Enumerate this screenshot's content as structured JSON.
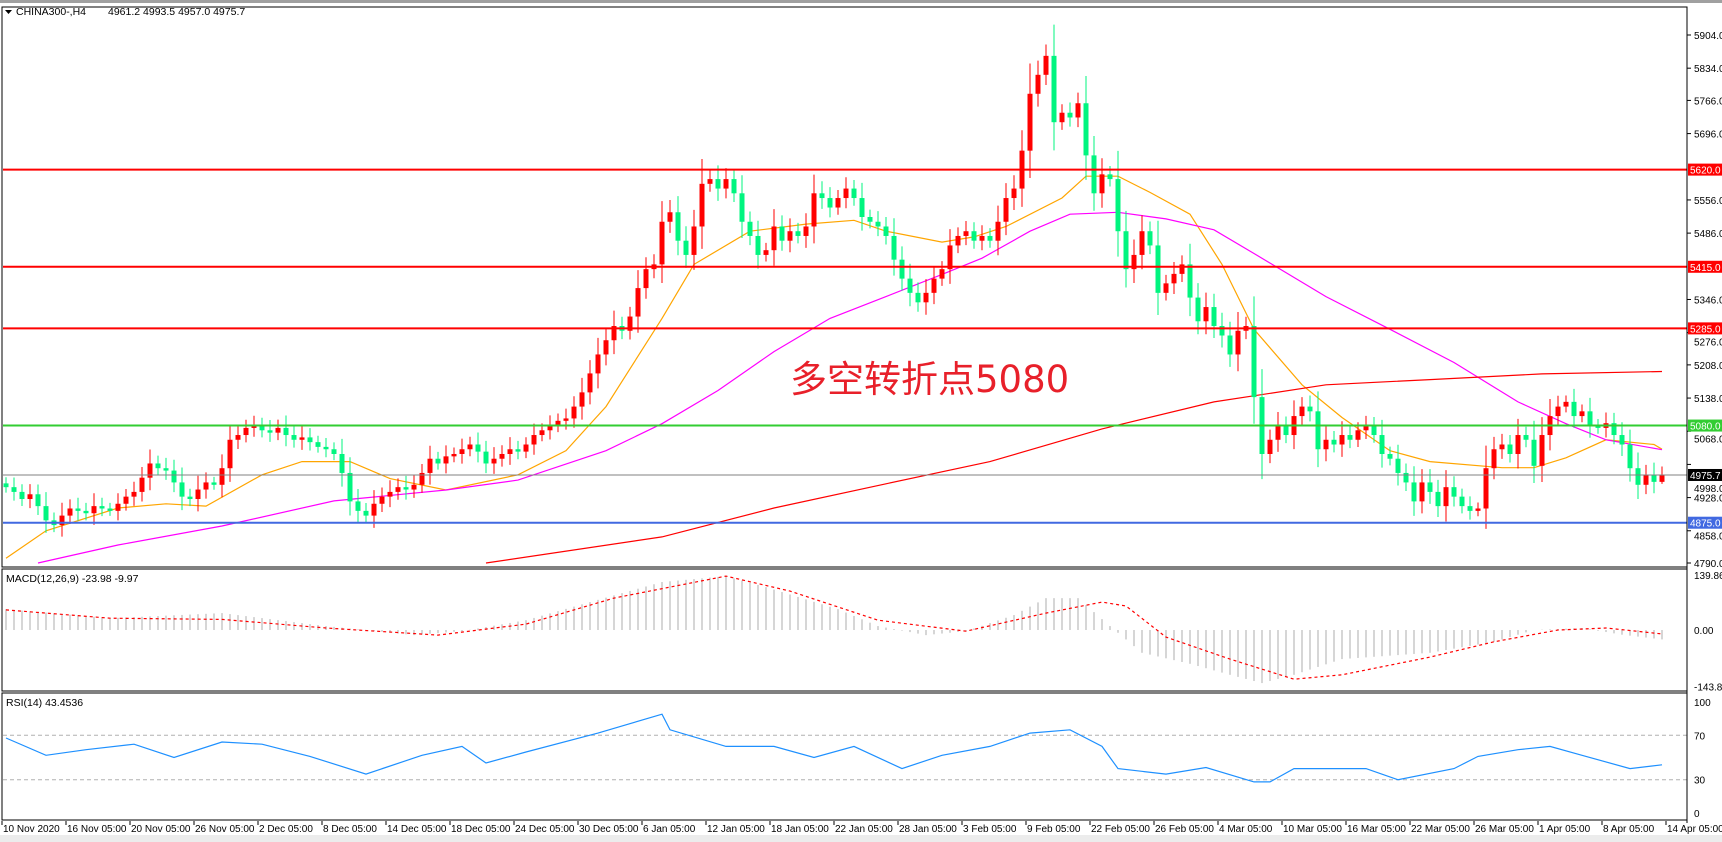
{
  "header": {
    "symbol": "CHINA300-,H4",
    "ohlc_text": "4961.2 4993.5 4957.0 4975.7"
  },
  "annotation": "多空转折点5080",
  "colors": {
    "bull": "#ff0000",
    "bear": "#00f57f",
    "ma_fast": "#ffa500",
    "ma_mid": "#ff00ff",
    "ma_slow": "#ff0000",
    "macd_hist": "#c0c0c0",
    "macd_signal": "#ff0000",
    "rsi": "#1e90ff"
  },
  "chart_data": [
    {
      "type": "candlestick",
      "title": "CHINA300-,H4",
      "last_bar": {
        "open": 4961.2,
        "high": 4993.5,
        "low": 4957.0,
        "close": 4975.7
      },
      "ylim": [
        4790,
        5904
      ],
      "y_ticks": [
        "5904.0",
        "5834.0",
        "5766.0",
        "5696.0",
        "5556.0",
        "5486.0",
        "5346.0",
        "5276.0",
        "5208.0",
        "5138.0",
        "5068.0",
        "4998.0",
        "4928.0",
        "4858.0",
        "4790.0"
      ],
      "x_ticks": [
        "10 Nov 2020",
        "16 Nov 05:00",
        "20 Nov 05:00",
        "26 Nov 05:00",
        "2 Dec 05:00",
        "8 Dec 05:00",
        "14 Dec 05:00",
        "18 Dec 05:00",
        "24 Dec 05:00",
        "30 Dec 05:00",
        "6 Jan 05:00",
        "12 Jan 05:00",
        "18 Jan 05:00",
        "22 Jan 05:00",
        "28 Jan 05:00",
        "3 Feb 05:00",
        "9 Feb 05:00",
        "22 Feb 05:00",
        "26 Feb 05:00",
        "4 Mar 05:00",
        "10 Mar 05:00",
        "16 Mar 05:00",
        "22 Mar 05:00",
        "26 Mar 05:00",
        "1 Apr 05:00",
        "8 Apr 05:00",
        "14 Apr 05:00"
      ],
      "close": [
        4950,
        4940,
        4925,
        4935,
        4910,
        4880,
        4870,
        4890,
        4905,
        4900,
        4895,
        4910,
        4905,
        4900,
        4915,
        4930,
        4940,
        4970,
        5000,
        4990,
        4985,
        4960,
        4930,
        4925,
        4945,
        4960,
        4955,
        4990,
        5050,
        5060,
        5075,
        5080,
        5070,
        5065,
        5075,
        5060,
        5050,
        5055,
        5045,
        5035,
        5030,
        5020,
        4980,
        4920,
        4900,
        4890,
        4915,
        4930,
        4940,
        4950,
        4945,
        4955,
        4980,
        5010,
        5000,
        5015,
        5020,
        5030,
        5040,
        5025,
        5000,
        5010,
        5020,
        5030,
        5025,
        5040,
        5060,
        5070,
        5080,
        5090,
        5095,
        5120,
        5150,
        5190,
        5230,
        5260,
        5290,
        5280,
        5310,
        5370,
        5410,
        5420,
        5510,
        5530,
        5470,
        5440,
        5500,
        5590,
        5600,
        5580,
        5600,
        5570,
        5510,
        5480,
        5440,
        5450,
        5500,
        5470,
        5490,
        5480,
        5500,
        5570,
        5560,
        5540,
        5560,
        5580,
        5560,
        5520,
        5510,
        5500,
        5480,
        5430,
        5390,
        5360,
        5340,
        5360,
        5390,
        5410,
        5460,
        5480,
        5490,
        5470,
        5480,
        5470,
        5510,
        5560,
        5580,
        5660,
        5780,
        5820,
        5860,
        5720,
        5740,
        5730,
        5760,
        5650,
        5570,
        5610,
        5600,
        5490,
        5410,
        5440,
        5490,
        5460,
        5360,
        5380,
        5400,
        5420,
        5350,
        5300,
        5330,
        5290,
        5270,
        5230,
        5280,
        5290,
        5140,
        5020,
        5050,
        5080,
        5060,
        5100,
        5120,
        5110,
        5030,
        5050,
        5040,
        5060,
        5050,
        5070,
        5080,
        5060,
        5020,
        5010,
        4980,
        4960,
        4920,
        4960,
        4940,
        4910,
        4950,
        4930,
        4910,
        4900,
        4905,
        4990,
        5030,
        5040,
        5020,
        5060,
        5050,
        4995,
        5060,
        5100,
        5120,
        5130,
        5100,
        5110,
        5080,
        5075,
        5085,
        5060,
        5040,
        4990,
        4955,
        4975,
        4961.2,
        4975.7
      ],
      "moving_averages": [
        {
          "color": "#ffa500",
          "points": [
            [
              0,
              4800
            ],
            [
              5,
              4858
            ],
            [
              14,
              4906
            ],
            [
              20,
              4915
            ],
            [
              25,
              4910
            ],
            [
              32,
              4976
            ],
            [
              37,
              5004
            ],
            [
              43,
              5004
            ],
            [
              48,
              4968
            ],
            [
              55,
              4944
            ],
            [
              64,
              4976
            ],
            [
              70,
              5027
            ],
            [
              75,
              5120
            ],
            [
              82,
              5306
            ],
            [
              86,
              5420
            ],
            [
              93,
              5490
            ],
            [
              100,
              5505
            ],
            [
              106,
              5513
            ],
            [
              110,
              5490
            ],
            [
              117,
              5467
            ],
            [
              121,
              5478
            ],
            [
              125,
              5500
            ],
            [
              132,
              5560
            ],
            [
              135,
              5606
            ],
            [
              139,
              5606
            ],
            [
              143,
              5572
            ],
            [
              148,
              5526
            ],
            [
              152,
              5420
            ],
            [
              156,
              5283
            ],
            [
              162,
              5166
            ],
            [
              167,
              5097
            ],
            [
              173,
              5027
            ],
            [
              178,
              5004
            ],
            [
              187,
              4991
            ],
            [
              191,
              4991
            ],
            [
              195,
              5012
            ],
            [
              200,
              5050
            ],
            [
              206,
              5040
            ],
            [
              207,
              5030
            ]
          ]
        },
        {
          "color": "#ff00ff",
          "points": [
            [
              4,
              4790
            ],
            [
              14,
              4828
            ],
            [
              27,
              4868
            ],
            [
              41,
              4921
            ],
            [
              55,
              4944
            ],
            [
              64,
              4965
            ],
            [
              75,
              5027
            ],
            [
              82,
              5084
            ],
            [
              89,
              5154
            ],
            [
              96,
              5236
            ],
            [
              103,
              5306
            ],
            [
              110,
              5352
            ],
            [
              117,
              5399
            ],
            [
              122,
              5433
            ],
            [
              128,
              5490
            ],
            [
              133,
              5526
            ],
            [
              139,
              5530
            ],
            [
              145,
              5516
            ],
            [
              151,
              5493
            ],
            [
              156,
              5443
            ],
            [
              165,
              5352
            ],
            [
              173,
              5283
            ],
            [
              181,
              5213
            ],
            [
              189,
              5130
            ],
            [
              195,
              5084
            ],
            [
              200,
              5050
            ],
            [
              207,
              5029
            ]
          ]
        },
        {
          "color": "#ff0000",
          "points": [
            [
              60,
              4790
            ],
            [
              82,
              4845
            ],
            [
              96,
              4906
            ],
            [
              110,
              4957
            ],
            [
              123,
              5004
            ],
            [
              137,
              5073
            ],
            [
              151,
              5130
            ],
            [
              165,
              5166
            ],
            [
              178,
              5177
            ],
            [
              192,
              5189
            ],
            [
              207,
              5194
            ]
          ]
        }
      ],
      "levels": [
        {
          "value": 5620.0,
          "label": "5620.0",
          "color": "#ff0000"
        },
        {
          "value": 5415.0,
          "label": "5415.0",
          "color": "#ff0000"
        },
        {
          "value": 5285.0,
          "label": "5285.0",
          "color": "#ff0000"
        },
        {
          "value": 5080.0,
          "label": "5080.0",
          "color": "#32cd32"
        },
        {
          "value": 4875.0,
          "label": "4875.0",
          "color": "#4169e1"
        },
        {
          "value": 4975.7,
          "label": "4975.7",
          "color": "#000000",
          "line_color": "#808080"
        }
      ]
    },
    {
      "type": "bar",
      "title": "MACD(12,26,9) -23.98 -9.97",
      "ylim": [
        -143.82,
        139.86
      ],
      "y_ticks": [
        "139.86",
        "0.00",
        "-143.82"
      ],
      "histogram": [
        [
          0,
          53
        ],
        [
          13,
          30
        ],
        [
          27,
          43
        ],
        [
          40,
          10
        ],
        [
          51,
          -13
        ],
        [
          57,
          -3
        ],
        [
          65,
          25
        ],
        [
          73,
          71
        ],
        [
          82,
          122
        ],
        [
          90,
          137
        ],
        [
          95,
          109
        ],
        [
          104,
          53
        ],
        [
          109,
          10
        ],
        [
          115,
          -13
        ],
        [
          120,
          -3
        ],
        [
          126,
          38
        ],
        [
          130,
          81
        ],
        [
          134,
          81
        ],
        [
          138,
          10
        ],
        [
          142,
          -58
        ],
        [
          148,
          -86
        ],
        [
          153,
          -114
        ],
        [
          157,
          -135
        ],
        [
          161,
          -114
        ],
        [
          167,
          -74
        ],
        [
          178,
          -58
        ],
        [
          186,
          -30
        ],
        [
          191,
          0
        ],
        [
          197,
          5
        ],
        [
          202,
          -12
        ],
        [
          207,
          -23.98
        ]
      ],
      "signal": [
        [
          0,
          51
        ],
        [
          13,
          30
        ],
        [
          27,
          27
        ],
        [
          40,
          5
        ],
        [
          54,
          -13
        ],
        [
          65,
          15
        ],
        [
          76,
          81
        ],
        [
          90,
          137
        ],
        [
          98,
          99
        ],
        [
          109,
          25
        ],
        [
          120,
          -3
        ],
        [
          130,
          43
        ],
        [
          137,
          71
        ],
        [
          140,
          61
        ],
        [
          145,
          -18
        ],
        [
          153,
          -74
        ],
        [
          161,
          -125
        ],
        [
          167,
          -114
        ],
        [
          178,
          -69
        ],
        [
          186,
          -30
        ],
        [
          194,
          0
        ],
        [
          200,
          5
        ],
        [
          207,
          -9.97
        ]
      ]
    },
    {
      "type": "line",
      "title": "RSI(14) 43.4536",
      "ylim": [
        0,
        100
      ],
      "y_ticks": [
        "100",
        "70",
        "30",
        "0"
      ],
      "levels": [
        70,
        30
      ],
      "points": [
        [
          0,
          67.6
        ],
        [
          5,
          52
        ],
        [
          10,
          57
        ],
        [
          16,
          62
        ],
        [
          21,
          50
        ],
        [
          27,
          64
        ],
        [
          32,
          62
        ],
        [
          38,
          51
        ],
        [
          45,
          35
        ],
        [
          52,
          52
        ],
        [
          57,
          60
        ],
        [
          60,
          45
        ],
        [
          65,
          55
        ],
        [
          74,
          72
        ],
        [
          82,
          89
        ],
        [
          83,
          75
        ],
        [
          90,
          60
        ],
        [
          96,
          60
        ],
        [
          101,
          50
        ],
        [
          106,
          60
        ],
        [
          112,
          40
        ],
        [
          117,
          52
        ],
        [
          123,
          60
        ],
        [
          128,
          72
        ],
        [
          133,
          75
        ],
        [
          137,
          60
        ],
        [
          139,
          40
        ],
        [
          145,
          35
        ],
        [
          150,
          41
        ],
        [
          156,
          28
        ],
        [
          158,
          28
        ],
        [
          161,
          40
        ],
        [
          170,
          40
        ],
        [
          174,
          30
        ],
        [
          181,
          40
        ],
        [
          184,
          51
        ],
        [
          189,
          57
        ],
        [
          193,
          60
        ],
        [
          197,
          52
        ],
        [
          203,
          40
        ],
        [
          207,
          43.45
        ]
      ]
    }
  ]
}
